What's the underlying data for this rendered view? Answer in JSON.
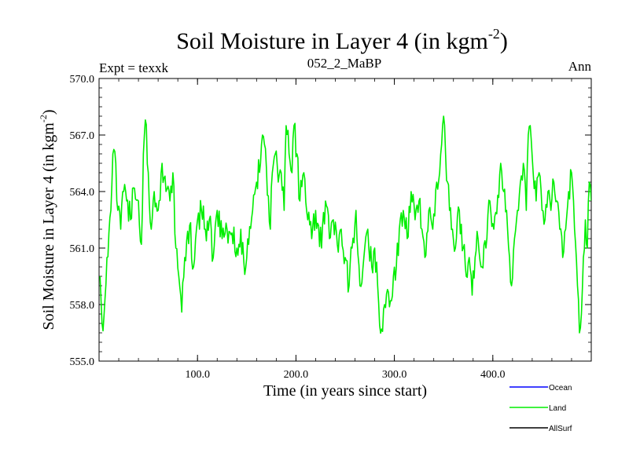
{
  "chart_data": {
    "type": "line",
    "title": "Soil Moisture in Layer 4 (in kgm",
    "title_exp": "-2",
    "title_close": ")",
    "subtitle_left": "Expt = texxk",
    "subtitle_center": "052_2_MaBP",
    "subtitle_right": "Ann",
    "xlabel": "Time (in years since start)",
    "ylabel": "Soil Moisture in Layer 4 (in kgm",
    "ylabel_exp": "-2",
    "ylabel_close": ")",
    "xlim": [
      0,
      500
    ],
    "ylim": [
      555,
      570
    ],
    "xticks": [
      {
        "value": 100,
        "label": "100.0"
      },
      {
        "value": 200,
        "label": "200.0"
      },
      {
        "value": 300,
        "label": "300.0"
      },
      {
        "value": 400,
        "label": "400.0"
      }
    ],
    "yticks": [
      {
        "value": 555,
        "label": "555.0"
      },
      {
        "value": 558,
        "label": "558.0"
      },
      {
        "value": 561,
        "label": "561.0"
      },
      {
        "value": 564,
        "label": "564.0"
      },
      {
        "value": 567,
        "label": "567.0"
      },
      {
        "value": 570,
        "label": "570.0"
      }
    ],
    "legend": [
      {
        "name": "Ocean",
        "color": "#0000ff"
      },
      {
        "name": "Land",
        "color": "#00ee00"
      },
      {
        "name": "AllSurf",
        "color": "#000000"
      }
    ],
    "series": [
      {
        "name": "Land",
        "color": "#00ee00",
        "x_start": 1,
        "x_step": 1,
        "anchors": [
          [
            1,
            559.5
          ],
          [
            3,
            557.0
          ],
          [
            5,
            557.4
          ],
          [
            8,
            560.5
          ],
          [
            12,
            563.0
          ],
          [
            14,
            566.0
          ],
          [
            17,
            565.5
          ],
          [
            19,
            563.0
          ],
          [
            22,
            562.0
          ],
          [
            25,
            564.0
          ],
          [
            28,
            563.5
          ],
          [
            32,
            562.5
          ],
          [
            35,
            564.2
          ],
          [
            40,
            563.5
          ],
          [
            43,
            561.2
          ],
          [
            45,
            566.0
          ],
          [
            47,
            567.8
          ],
          [
            50,
            565.0
          ],
          [
            53,
            562.0
          ],
          [
            56,
            564.0
          ],
          [
            60,
            563.0
          ],
          [
            64,
            565.5
          ],
          [
            68,
            564.0
          ],
          [
            72,
            563.5
          ],
          [
            75,
            565.0
          ],
          [
            78,
            561.0
          ],
          [
            81,
            559.5
          ],
          [
            84,
            557.6
          ],
          [
            87,
            560.5
          ],
          [
            92,
            562.2
          ],
          [
            96,
            560.0
          ],
          [
            100,
            562.5
          ],
          [
            104,
            563.0
          ],
          [
            108,
            562.0
          ],
          [
            112,
            562.5
          ],
          [
            116,
            560.5
          ],
          [
            120,
            563.0
          ],
          [
            125,
            561.5
          ],
          [
            130,
            562.0
          ],
          [
            135,
            561.8
          ],
          [
            140,
            561.0
          ],
          [
            144,
            562.0
          ],
          [
            148,
            559.6
          ],
          [
            152,
            561.2
          ],
          [
            156,
            563.0
          ],
          [
            160,
            564.5
          ],
          [
            164,
            565.5
          ],
          [
            166,
            567.0
          ],
          [
            168,
            566.5
          ],
          [
            171,
            563.8
          ],
          [
            174,
            562.0
          ],
          [
            176,
            565.0
          ],
          [
            179,
            566.0
          ],
          [
            182,
            564.5
          ],
          [
            185,
            565.0
          ],
          [
            188,
            563.0
          ],
          [
            190,
            567.5
          ],
          [
            193,
            566.0
          ],
          [
            196,
            565.0
          ],
          [
            198,
            567.5
          ],
          [
            201,
            566.0
          ],
          [
            204,
            563.5
          ],
          [
            208,
            565.0
          ],
          [
            212,
            562.5
          ],
          [
            216,
            561.5
          ],
          [
            220,
            563.0
          ],
          [
            223,
            562.2
          ],
          [
            226,
            561.0
          ],
          [
            230,
            563.5
          ],
          [
            234,
            561.5
          ],
          [
            238,
            562.5
          ],
          [
            242,
            561.2
          ],
          [
            246,
            562.0
          ],
          [
            250,
            560.5
          ],
          [
            254,
            559.0
          ],
          [
            257,
            561.0
          ],
          [
            261,
            563.0
          ],
          [
            265,
            559.0
          ],
          [
            269,
            560.5
          ],
          [
            273,
            562.0
          ],
          [
            277,
            560.0
          ],
          [
            280,
            561.0
          ],
          [
            283,
            559.0
          ],
          [
            285,
            556.9
          ],
          [
            287,
            556.7
          ],
          [
            290,
            558.0
          ],
          [
            293,
            558.8
          ],
          [
            296,
            558.2
          ],
          [
            299,
            559.5
          ],
          [
            302,
            560.0
          ],
          [
            305,
            562.0
          ],
          [
            309,
            563.0
          ],
          [
            313,
            561.5
          ],
          [
            317,
            564.0
          ],
          [
            321,
            562.5
          ],
          [
            325,
            563.5
          ],
          [
            328,
            562.0
          ],
          [
            331,
            560.5
          ],
          [
            335,
            563.0
          ],
          [
            339,
            562.0
          ],
          [
            343,
            564.5
          ],
          [
            346,
            565.0
          ],
          [
            348,
            566.5
          ],
          [
            350,
            568.0
          ],
          [
            352,
            566.0
          ],
          [
            354,
            564.5
          ],
          [
            356,
            563.0
          ],
          [
            359,
            562.0
          ],
          [
            362,
            561.0
          ],
          [
            366,
            563.0
          ],
          [
            370,
            561.0
          ],
          [
            373,
            559.5
          ],
          [
            376,
            560.5
          ],
          [
            379,
            558.5
          ],
          [
            382,
            560.5
          ],
          [
            385,
            561.5
          ],
          [
            389,
            560.0
          ],
          [
            393,
            561.0
          ],
          [
            397,
            563.5
          ],
          [
            401,
            562.0
          ],
          [
            405,
            563.8
          ],
          [
            408,
            565.5
          ],
          [
            411,
            564.0
          ],
          [
            414,
            563.0
          ],
          [
            417,
            560.5
          ],
          [
            419,
            559.0
          ],
          [
            422,
            561.5
          ],
          [
            425,
            563.0
          ],
          [
            428,
            564.5
          ],
          [
            431,
            565.5
          ],
          [
            434,
            563.0
          ],
          [
            436,
            567.0
          ],
          [
            438,
            567.5
          ],
          [
            441,
            565.0
          ],
          [
            444,
            563.5
          ],
          [
            447,
            565.0
          ],
          [
            450,
            563.0
          ],
          [
            453,
            562.5
          ],
          [
            456,
            564.0
          ],
          [
            459,
            563.0
          ],
          [
            462,
            564.5
          ],
          [
            465,
            563.5
          ],
          [
            468,
            562.0
          ],
          [
            471,
            560.5
          ],
          [
            474,
            562.0
          ],
          [
            477,
            564.0
          ],
          [
            480,
            565.0
          ],
          [
            483,
            562.0
          ],
          [
            486,
            559.0
          ],
          [
            488,
            556.5
          ],
          [
            490,
            557.5
          ],
          [
            492,
            560.5
          ],
          [
            494,
            562.5
          ],
          [
            496,
            561.0
          ],
          [
            498,
            564.5
          ],
          [
            500,
            563.5
          ]
        ],
        "noise_amplitude": 0.75,
        "noise_seed": 20520
      }
    ]
  }
}
